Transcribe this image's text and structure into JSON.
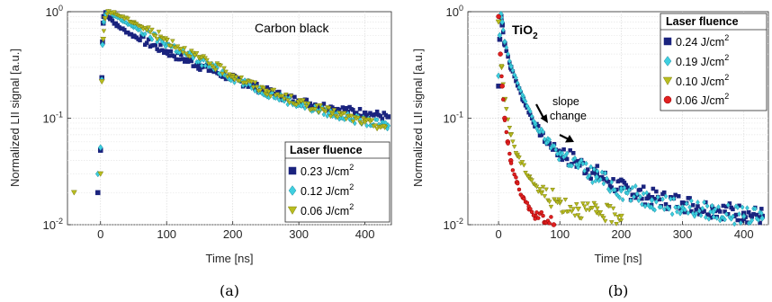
{
  "chart_data": [
    {
      "type": "scatter",
      "panel_caption": "(a)",
      "title": "Carbon black",
      "xlabel": "Time [ns]",
      "ylabel": "Normalized LII signal [a.u.]",
      "xlim": [
        -50,
        440
      ],
      "ylim": [
        0.01,
        1
      ],
      "yscale": "log",
      "xticks": [
        0,
        100,
        200,
        300,
        400
      ],
      "yticks": [
        {
          "value": 0.01,
          "base": "10",
          "exp": "-2"
        },
        {
          "value": 0.1,
          "base": "10",
          "exp": "-1"
        },
        {
          "value": 1,
          "base": "10",
          "exp": "0"
        }
      ],
      "grid": true,
      "legend": {
        "title": "Laser fluence",
        "placement": "bottom-right",
        "entries": [
          {
            "label": "0.23 J/cm",
            "sup": "2"
          },
          {
            "label": "0.12 J/cm",
            "sup": "2"
          },
          {
            "label": "0.06 J/cm",
            "sup": "2"
          }
        ]
      },
      "series": [
        {
          "name": "0.23 J/cm2",
          "marker": "square",
          "color": "#1a237e",
          "points": [
            [
              -4,
              0.02
            ],
            [
              0,
              0.05
            ],
            [
              2,
              0.24
            ],
            [
              3,
              0.52
            ],
            [
              4,
              0.78
            ],
            [
              5,
              0.9
            ],
            [
              8,
              0.98
            ],
            [
              15,
              0.86
            ],
            [
              25,
              0.74
            ],
            [
              50,
              0.59
            ],
            [
              100,
              0.42
            ],
            [
              150,
              0.31
            ],
            [
              200,
              0.235
            ],
            [
              250,
              0.18
            ],
            [
              300,
              0.145
            ],
            [
              350,
              0.125
            ],
            [
              400,
              0.112
            ],
            [
              435,
              0.103
            ]
          ]
        },
        {
          "name": "0.12 J/cm2",
          "marker": "diamond",
          "color": "#3ecfe0",
          "points": [
            [
              -4,
              0.03
            ],
            [
              0,
              0.053
            ],
            [
              2,
              0.23
            ],
            [
              3,
              0.49
            ],
            [
              5,
              0.8
            ],
            [
              8,
              0.95
            ],
            [
              12,
              0.99
            ],
            [
              20,
              0.92
            ],
            [
              50,
              0.72
            ],
            [
              100,
              0.5
            ],
            [
              150,
              0.345
            ],
            [
              200,
              0.24
            ],
            [
              250,
              0.175
            ],
            [
              300,
              0.135
            ],
            [
              350,
              0.11
            ],
            [
              400,
              0.093
            ],
            [
              435,
              0.085
            ]
          ]
        },
        {
          "name": "0.06 J/cm2",
          "marker": "triangle-down",
          "color": "#b9bd1f",
          "points": [
            [
              -40,
              0.02
            ],
            [
              0,
              0.03
            ],
            [
              2,
              0.22
            ],
            [
              4,
              0.55
            ],
            [
              7,
              0.86
            ],
            [
              12,
              1.0
            ],
            [
              20,
              0.97
            ],
            [
              50,
              0.79
            ],
            [
              100,
              0.54
            ],
            [
              150,
              0.365
            ],
            [
              200,
              0.25
            ],
            [
              250,
              0.18
            ],
            [
              300,
              0.14
            ],
            [
              350,
              0.112
            ],
            [
              400,
              0.092
            ],
            [
              430,
              0.082
            ]
          ]
        }
      ]
    },
    {
      "type": "scatter",
      "panel_caption": "(b)",
      "title": "TiO",
      "title_sub": "2",
      "xlabel": "Time [ns]",
      "ylabel": "Normalized LII signal [a.u.]",
      "xlim": [
        -50,
        440
      ],
      "ylim": [
        0.01,
        1
      ],
      "yscale": "log",
      "xticks": [
        0,
        100,
        200,
        300,
        400
      ],
      "yticks": [
        {
          "value": 0.01,
          "base": "10",
          "exp": "-2"
        },
        {
          "value": 0.1,
          "base": "10",
          "exp": "-1"
        },
        {
          "value": 1,
          "base": "10",
          "exp": "0"
        }
      ],
      "grid": true,
      "annotation": {
        "lines": [
          "slope",
          "change"
        ]
      },
      "legend": {
        "title": "Laser fluence",
        "placement": "top-right",
        "entries": [
          {
            "label": "0.24 J/cm",
            "sup": "2"
          },
          {
            "label": "0.19 J/cm",
            "sup": "2"
          },
          {
            "label": "0.10 J/cm",
            "sup": "2"
          },
          {
            "label": "0.06 J/cm",
            "sup": "2"
          }
        ]
      },
      "series": [
        {
          "name": "0.24 J/cm2",
          "marker": "square",
          "color": "#1a237e",
          "points": [
            [
              0,
              0.2
            ],
            [
              2,
              0.55
            ],
            [
              4,
              0.9
            ],
            [
              6,
              0.75
            ],
            [
              10,
              0.5
            ],
            [
              20,
              0.3
            ],
            [
              40,
              0.15
            ],
            [
              60,
              0.085
            ],
            [
              80,
              0.058
            ],
            [
              100,
              0.048
            ],
            [
              130,
              0.038
            ],
            [
              160,
              0.03
            ],
            [
              200,
              0.022
            ],
            [
              250,
              0.018
            ],
            [
              300,
              0.016
            ],
            [
              350,
              0.014
            ],
            [
              400,
              0.0128
            ],
            [
              430,
              0.012
            ]
          ]
        },
        {
          "name": "0.19 J/cm2",
          "marker": "diamond",
          "color": "#3ecfe0",
          "points": [
            [
              0,
              0.25
            ],
            [
              2,
              0.6
            ],
            [
              4,
              0.95
            ],
            [
              6,
              0.8
            ],
            [
              10,
              0.52
            ],
            [
              20,
              0.31
            ],
            [
              40,
              0.16
            ],
            [
              60,
              0.088
            ],
            [
              80,
              0.06
            ],
            [
              100,
              0.047
            ],
            [
              130,
              0.036
            ],
            [
              160,
              0.028
            ],
            [
              200,
              0.021
            ],
            [
              250,
              0.017
            ],
            [
              300,
              0.0145
            ],
            [
              350,
              0.0132
            ],
            [
              400,
              0.012
            ],
            [
              430,
              0.0115
            ]
          ]
        },
        {
          "name": "0.10 J/cm2",
          "marker": "triangle-down",
          "color": "#b9bd1f",
          "points": [
            [
              0,
              0.8
            ],
            [
              5,
              0.3
            ],
            [
              10,
              0.15
            ],
            [
              20,
              0.07
            ],
            [
              30,
              0.045
            ],
            [
              50,
              0.028
            ],
            [
              70,
              0.02
            ],
            [
              100,
              0.016
            ],
            [
              130,
              0.014
            ],
            [
              160,
              0.013
            ],
            [
              200,
              0.012
            ]
          ]
        },
        {
          "name": "0.06 J/cm2",
          "marker": "circle",
          "color": "#e02020",
          "points": [
            [
              0,
              0.9
            ],
            [
              3,
              0.4
            ],
            [
              6,
              0.2
            ],
            [
              10,
              0.1
            ],
            [
              15,
              0.06
            ],
            [
              20,
              0.04
            ],
            [
              30,
              0.025
            ],
            [
              40,
              0.018
            ],
            [
              50,
              0.014
            ],
            [
              60,
              0.012
            ],
            [
              75,
              0.0105
            ],
            [
              90,
              0.01
            ]
          ]
        }
      ]
    }
  ]
}
